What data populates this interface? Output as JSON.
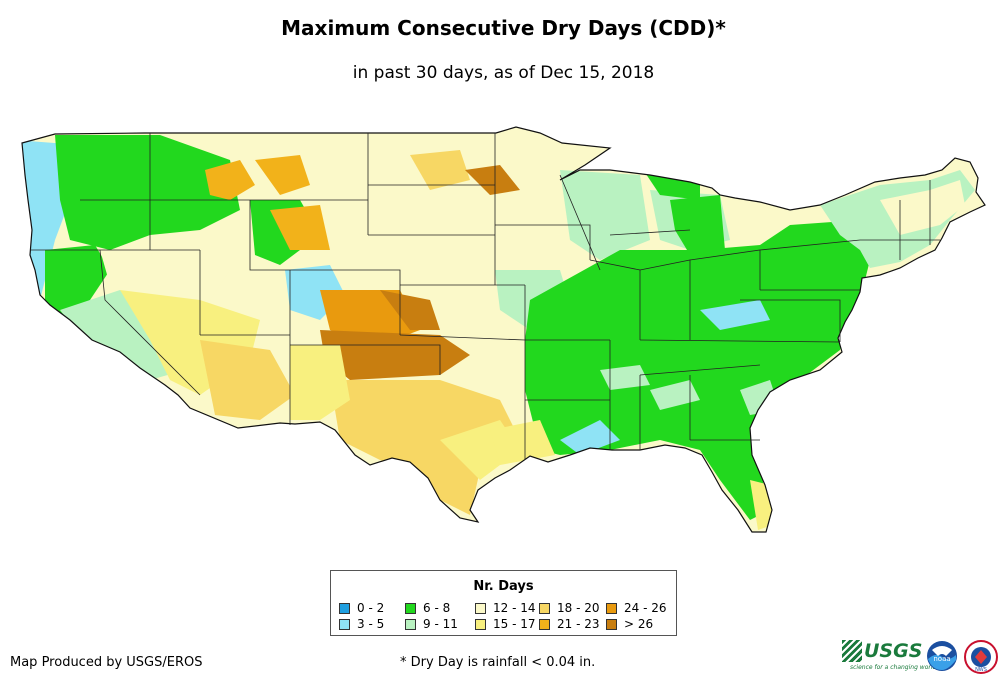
{
  "title": "Maximum Consecutive Dry Days (CDD)*",
  "subtitle": "in past 30 days, as of Dec 15, 2018",
  "legend": {
    "title": "Nr. Days",
    "items": [
      {
        "label": "0 - 2",
        "color": "#1f9fe0"
      },
      {
        "label": "3 - 5",
        "color": "#8fe3f5"
      },
      {
        "label": "6 - 8",
        "color": "#22d81e"
      },
      {
        "label": "9 - 11",
        "color": "#b9f2c1"
      },
      {
        "label": "12 - 14",
        "color": "#fbf9c9"
      },
      {
        "label": "15 - 17",
        "color": "#f8f07f"
      },
      {
        "label": "18 - 20",
        "color": "#f7d764"
      },
      {
        "label": "21 - 23",
        "color": "#f2b21a"
      },
      {
        "label": "24 - 26",
        "color": "#e99a0e"
      },
      {
        "label": "> 26",
        "color": "#c87e10"
      }
    ]
  },
  "credit": "Map Produced by USGS/EROS",
  "footnote": "* Dry Day is rainfall < 0.04 in.",
  "logos": {
    "usgs": "USGS",
    "usgs_tagline": "science for a changing world",
    "noaa": "noaa",
    "nws": "NWS"
  }
}
